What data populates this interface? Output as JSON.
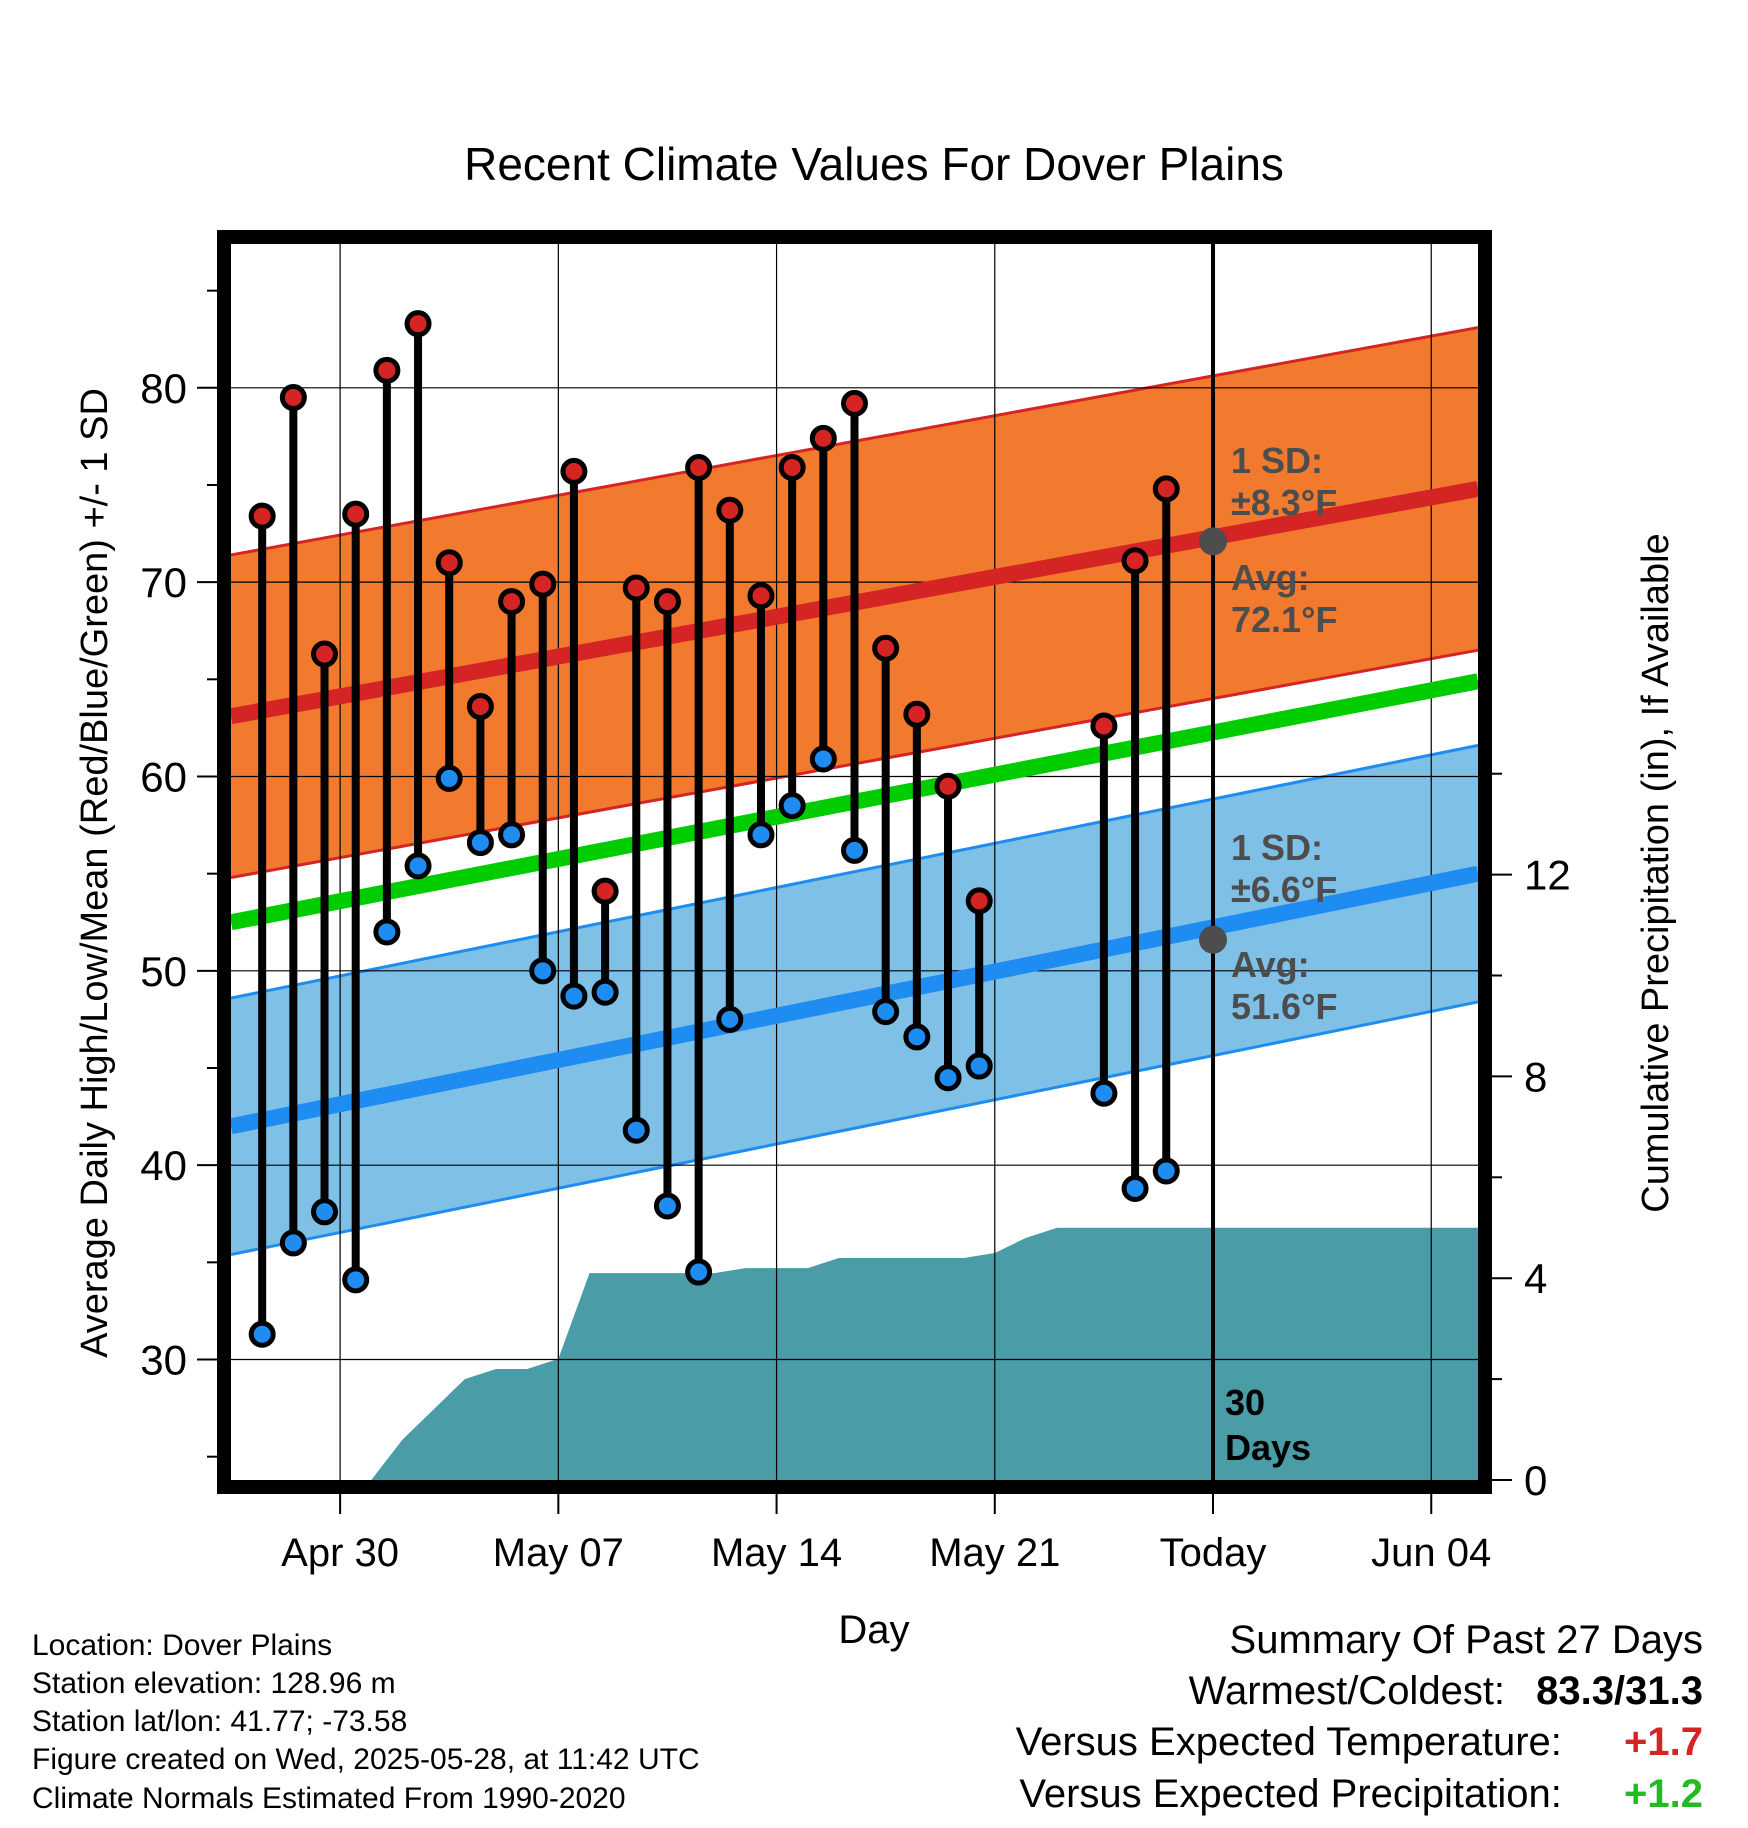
{
  "chart_data": {
    "type": "line",
    "title": "Recent Climate Values For Dover Plains",
    "xlabel": "Day",
    "ylabel": "Average Daily High/Low/Mean (Red/Blue/Green) +/- 1 SD",
    "y2label": "Cumulative Precipitation (in), If Available",
    "x_start": "Apr 27",
    "x_end": "Jun 06",
    "today": "May 28",
    "x_ticks": [
      {
        "day": 3.5,
        "label": "Apr 30"
      },
      {
        "day": 10.5,
        "label": "May 07"
      },
      {
        "day": 17.5,
        "label": "May 14"
      },
      {
        "day": 24.5,
        "label": "May 21"
      },
      {
        "day": 31.5,
        "label": "Today"
      },
      {
        "day": 38.5,
        "label": "Jun 04"
      }
    ],
    "y_ticks": [
      "30",
      "40",
      "50",
      "60",
      "70",
      "80"
    ],
    "y2_ticks": [
      "0",
      "4",
      "8",
      "12"
    ],
    "ylim": [
      23.8,
      87.4
    ],
    "y2lim": [
      0,
      24.5
    ],
    "colors": {
      "high_band": "#f27a2e",
      "high_edge": "#d42424",
      "high_mean": "#d42424",
      "low_band": "#7ec0e6",
      "low_edge": "#1e8cf0",
      "low_mean": "#1e8cf0",
      "mean_line": "#00cc00",
      "precip": "#4a9ca6",
      "high_marker": "#d42424",
      "low_marker": "#1e8cf0",
      "annotation": "#4d4d4d"
    },
    "normals": {
      "start_day": 0,
      "end_day": 40,
      "high_avg": [
        63.1,
        74.8
      ],
      "high_sd": 8.3,
      "low_avg": [
        42.0,
        55.0
      ],
      "low_sd": 6.6,
      "mean_avg": [
        52.5,
        64.9
      ]
    },
    "series": [
      {
        "name": "High",
        "days": [
          1,
          2,
          3,
          4,
          5,
          6,
          7,
          8,
          9,
          10,
          11,
          12,
          13,
          14,
          15,
          16,
          17,
          18,
          19,
          20,
          21,
          22,
          23,
          24,
          28,
          29,
          30
        ],
        "values": [
          73.4,
          79.5,
          66.3,
          73.5,
          80.9,
          83.3,
          71.0,
          63.6,
          69.0,
          69.9,
          75.7,
          54.1,
          69.7,
          69.0,
          75.9,
          73.7,
          69.3,
          75.9,
          77.4,
          79.2,
          66.6,
          63.2,
          59.5,
          53.6,
          62.6,
          71.1,
          74.8
        ]
      },
      {
        "name": "Low",
        "days": [
          1,
          2,
          3,
          4,
          5,
          6,
          7,
          8,
          9,
          10,
          11,
          12,
          13,
          14,
          15,
          16,
          17,
          18,
          19,
          20,
          21,
          22,
          23,
          24,
          28,
          29,
          30
        ],
        "values": [
          31.3,
          36.0,
          37.6,
          34.1,
          52.0,
          55.4,
          59.9,
          56.6,
          57.0,
          50.0,
          48.7,
          48.9,
          41.8,
          37.9,
          34.5,
          47.5,
          57.0,
          58.5,
          60.9,
          56.2,
          47.9,
          46.6,
          44.5,
          45.1,
          43.7,
          38.8,
          39.7
        ]
      },
      {
        "name": "Cumulative Precipitation",
        "days": [
          4.5,
          5.5,
          6.5,
          7.5,
          8.5,
          9.5,
          10.5,
          11.5,
          12.5,
          13.5,
          14.5,
          15.5,
          16.5,
          17.5,
          18.5,
          19.5,
          20.5,
          21.5,
          22.5,
          23.5,
          24.5,
          25.5,
          26.5,
          27.5,
          28.5,
          29.5,
          30.5,
          31.5,
          40
        ],
        "values": [
          0.0,
          0.8,
          1.4,
          2.0,
          2.2,
          2.2,
          2.4,
          4.1,
          4.1,
          4.1,
          4.1,
          4.1,
          4.2,
          4.2,
          4.2,
          4.4,
          4.4,
          4.4,
          4.4,
          4.4,
          4.5,
          4.8,
          5.0,
          5.0,
          5.0,
          5.0,
          5.0,
          5.0,
          5.0
        ]
      }
    ],
    "annotations": {
      "high_sd_label": "1 SD:",
      "high_sd_value": "±8.3°F",
      "high_avg_label": "Avg:",
      "high_avg_value": "72.1°F",
      "low_sd_label": "1 SD:",
      "low_sd_value": "±6.6°F",
      "low_avg_label": "Avg:",
      "low_avg_value": "51.6°F",
      "today_avg_high": 72.1,
      "today_avg_low": 51.6,
      "days_count": "30",
      "days_word": "Days"
    },
    "grid": true,
    "legend": "none"
  },
  "info": {
    "location": "Location: Dover Plains",
    "elevation": "Station elevation: 128.96 m",
    "latlon": "Station lat/lon: 41.77; -73.58",
    "created": "Figure created on Wed, 2025-05-28, at 11:42 UTC",
    "normals": "Climate Normals Estimated From 1990-2020"
  },
  "summary": {
    "title": "Summary Of Past 27 Days",
    "warm_cold_label": "Warmest/Coldest:",
    "warm_cold_value": "83.3/31.3",
    "temp_label": "Versus Expected Temperature:",
    "temp_value": "+1.7",
    "temp_color": "#d42424",
    "precip_label": "Versus Expected Precipitation:",
    "precip_value": "+1.2",
    "precip_color": "#22bb22"
  }
}
